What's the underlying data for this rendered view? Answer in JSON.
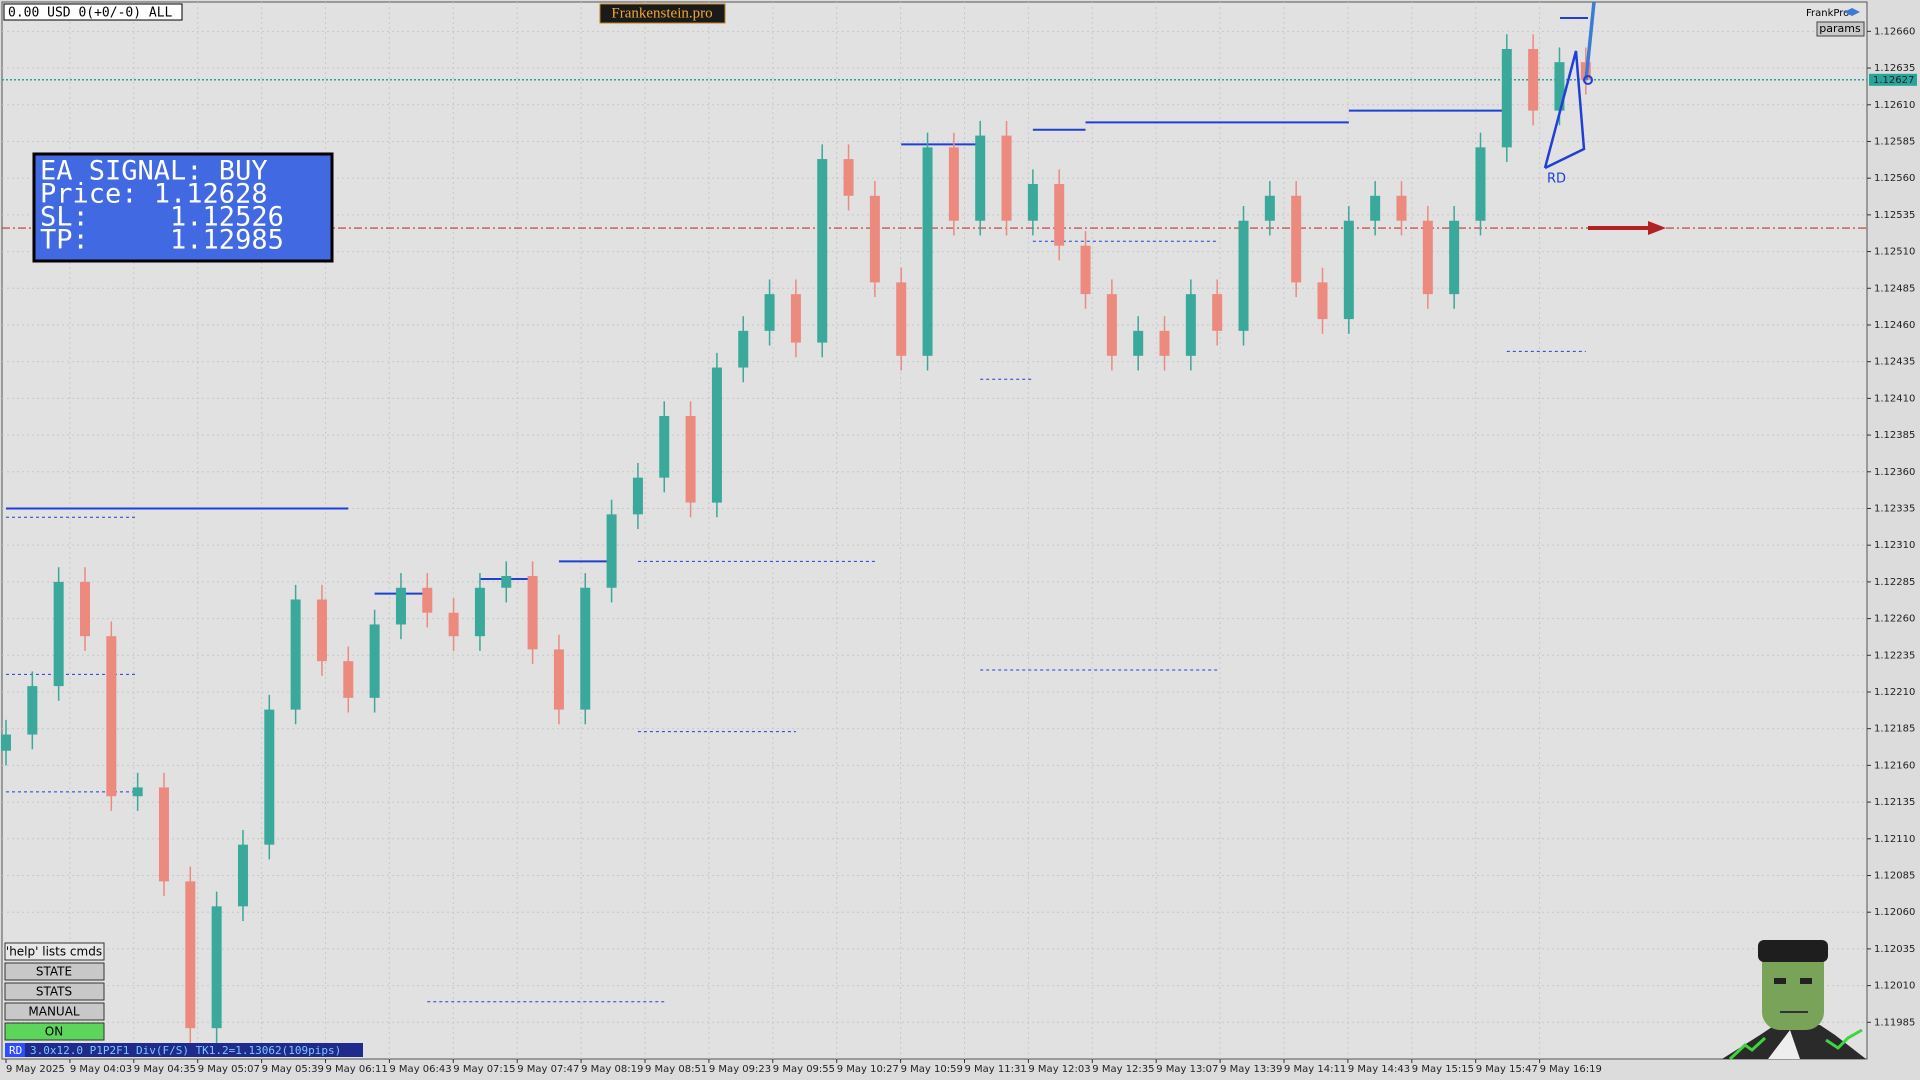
{
  "chart_data": {
    "type": "candlestick",
    "open": [
      1.1217,
      1.12181,
      1.12214,
      1.12285,
      1.12248,
      1.12139,
      1.12145,
      1.12081,
      1.11981,
      1.12064,
      1.12106,
      1.12198,
      1.12273,
      1.12231,
      1.12206,
      1.12256,
      1.12281,
      1.12264,
      1.12248,
      1.12281,
      1.12289,
      1.12239,
      1.12198,
      1.12281,
      1.12331,
      1.12356,
      1.12398,
      1.12339,
      1.12431,
      1.12456,
      1.12481,
      1.12448,
      1.12573,
      1.12548,
      1.12489,
      1.12439,
      1.12581,
      1.12531,
      1.12589,
      1.12531,
      1.12556,
      1.12514,
      1.12481,
      1.12439,
      1.12456,
      1.12439,
      1.12481,
      1.12456,
      1.12531,
      1.12548,
      1.12489,
      1.12464,
      1.12531,
      1.12548,
      1.12531,
      1.12481,
      1.12531,
      1.12581,
      1.12648,
      1.12606,
      1.12639
    ],
    "high": [
      1.12191,
      1.12224,
      1.12295,
      1.12295,
      1.12258,
      1.12155,
      1.12155,
      1.12091,
      1.12074,
      1.12116,
      1.12208,
      1.12283,
      1.12283,
      1.12241,
      1.12266,
      1.12291,
      1.12291,
      1.12274,
      1.12291,
      1.12299,
      1.12299,
      1.12249,
      1.12291,
      1.12341,
      1.12366,
      1.12408,
      1.12408,
      1.12441,
      1.12466,
      1.12491,
      1.12491,
      1.12583,
      1.12583,
      1.12558,
      1.12499,
      1.12591,
      1.12591,
      1.12599,
      1.12599,
      1.12566,
      1.12566,
      1.12524,
      1.12491,
      1.12466,
      1.12466,
      1.12491,
      1.12491,
      1.12541,
      1.12558,
      1.12558,
      1.12499,
      1.12541,
      1.12558,
      1.12558,
      1.12541,
      1.12541,
      1.12591,
      1.12658,
      1.12658,
      1.12649,
      1.12649
    ],
    "low": [
      1.1216,
      1.12171,
      1.12204,
      1.12238,
      1.12129,
      1.12129,
      1.12071,
      1.11971,
      1.11971,
      1.12054,
      1.12096,
      1.12188,
      1.12221,
      1.12196,
      1.12196,
      1.12246,
      1.12254,
      1.12238,
      1.12238,
      1.12271,
      1.12229,
      1.12188,
      1.12188,
      1.12271,
      1.12321,
      1.12346,
      1.12329,
      1.12329,
      1.12421,
      1.12446,
      1.12438,
      1.12438,
      1.12538,
      1.12479,
      1.12429,
      1.12429,
      1.12521,
      1.12521,
      1.12521,
      1.12521,
      1.12504,
      1.12471,
      1.12429,
      1.12429,
      1.12429,
      1.12429,
      1.12446,
      1.12446,
      1.12521,
      1.12479,
      1.12454,
      1.12454,
      1.12521,
      1.12521,
      1.12471,
      1.12471,
      1.12521,
      1.12571,
      1.12596,
      1.12596,
      1.12617
    ],
    "close": [
      1.12181,
      1.12214,
      1.12285,
      1.12248,
      1.12139,
      1.12145,
      1.12081,
      1.11981,
      1.12064,
      1.12106,
      1.12198,
      1.12273,
      1.12231,
      1.12206,
      1.12256,
      1.12281,
      1.12264,
      1.12248,
      1.12281,
      1.12289,
      1.12239,
      1.12198,
      1.12281,
      1.12331,
      1.12356,
      1.12398,
      1.12339,
      1.12431,
      1.12456,
      1.12481,
      1.12448,
      1.12573,
      1.12548,
      1.12489,
      1.12439,
      1.12581,
      1.12531,
      1.12589,
      1.12531,
      1.12556,
      1.12514,
      1.12481,
      1.12439,
      1.12456,
      1.12439,
      1.12481,
      1.12456,
      1.12531,
      1.12548,
      1.12489,
      1.12464,
      1.12531,
      1.12548,
      1.12531,
      1.12481,
      1.12531,
      1.12581,
      1.12648,
      1.12606,
      1.12639,
      1.12627
    ],
    "up_color": "#3aa89a",
    "down_color": "#ec8a80",
    "ylim": [
      1.1196,
      1.1268
    ],
    "yticks": [
      1.11985,
      {
        "value": 1.1201,
        "label": "1.12010"
      },
      1.12035,
      {
        "value": 1.1206,
        "label": "1.12060"
      },
      1.12085,
      {
        "value": 1.1211,
        "label": "1.12110"
      },
      1.12135,
      {
        "value": 1.1216,
        "label": "1.12160"
      },
      1.12185,
      {
        "value": 1.1221,
        "label": "1.12210"
      },
      1.12235,
      {
        "value": 1.1226,
        "label": "1.12260"
      },
      1.12285,
      {
        "value": 1.1231,
        "label": "1.12310"
      },
      1.12335,
      {
        "value": 1.1236,
        "label": "1.12360"
      },
      1.12385,
      {
        "value": 1.1241,
        "label": "1.12410"
      },
      1.12435,
      {
        "value": 1.1246,
        "label": "1.12460"
      },
      1.12485,
      {
        "value": 1.1251,
        "label": "1.12510"
      },
      1.12535,
      {
        "value": 1.1256,
        "label": "1.12560"
      },
      1.12585,
      {
        "value": 1.1261,
        "label": "1.12610"
      },
      1.12635,
      {
        "value": 1.1266,
        "label": "1.12660"
      }
    ],
    "xtick_labels": [
      "9 May 2025",
      "9 May 04:03",
      "9 May 04:35",
      "9 May 05:07",
      "9 May 05:39",
      "9 May 06:11",
      "9 May 06:43",
      "9 May 07:15",
      "9 May 07:47",
      "9 May 08:19",
      "9 May 08:51",
      "9 May 09:23",
      "9 May 09:55",
      "9 May 10:27",
      "9 May 10:59",
      "9 May 11:31",
      "9 May 12:03",
      "9 May 12:35",
      "9 May 13:07",
      "9 May 13:39",
      "9 May 14:11",
      "9 May 14:43",
      "9 May 15:15",
      "9 May 15:47",
      "9 May 16:19"
    ],
    "grid": true,
    "price_line": {
      "value": 1.12627,
      "color": "#26a69a"
    },
    "sl_line": {
      "value": 1.12526,
      "color": "#c0392b"
    },
    "level_color": "#1f3fd6",
    "levels": [
      {
        "value": 1.12335,
        "start": 0,
        "end": 13,
        "dashed": false
      },
      {
        "value": 1.12277,
        "start": 14,
        "end": 16,
        "dashed": false
      },
      {
        "value": 1.12287,
        "start": 18,
        "end": 20,
        "dashed": false
      },
      {
        "value": 1.12299,
        "start": 21,
        "end": 23,
        "dashed": false
      },
      {
        "value": 1.12583,
        "start": 34,
        "end": 37,
        "dashed": false
      },
      {
        "value": 1.12593,
        "start": 39,
        "end": 41,
        "dashed": false
      },
      {
        "value": 1.12598,
        "start": 41,
        "end": 51,
        "dashed": false
      },
      {
        "value": 1.12606,
        "start": 51,
        "end": 57,
        "dashed": false
      },
      {
        "value": 1.12329,
        "start": 0,
        "end": 5,
        "dashed": true
      },
      {
        "value": 1.12222,
        "start": 0,
        "end": 5,
        "dashed": true
      },
      {
        "value": 1.12142,
        "start": 0,
        "end": 5,
        "dashed": true
      },
      {
        "value": 1.12183,
        "start": 24,
        "end": 30,
        "dashed": true
      },
      {
        "value": 1.12299,
        "start": 24,
        "end": 33,
        "dashed": true
      },
      {
        "value": 1.12225,
        "start": 37,
        "end": 46,
        "dashed": true
      },
      {
        "value": 1.12423,
        "start": 37,
        "end": 39,
        "dashed": true
      },
      {
        "value": 1.12517,
        "start": 39,
        "end": 46,
        "dashed": true
      },
      {
        "value": 1.11999,
        "start": 16,
        "end": 25,
        "dashed": true
      },
      {
        "value": 1.12442,
        "start": 57,
        "end": 60,
        "dashed": true
      }
    ]
  },
  "account": {
    "status": "0.00 USD 0(+0/-0) ALL"
  },
  "brand": "Frankenstein.pro",
  "signal": {
    "title": "EA SIGNAL: BUY",
    "lines": [
      "Price: 1.12628",
      "SL:     1.12526",
      "TP:     1.12985"
    ]
  },
  "panel": {
    "name": "FrankPro",
    "params": "params"
  },
  "buttons": [
    "'help' lists cmds",
    "STATE",
    "STATS",
    "MANUAL",
    "ON"
  ],
  "status_bar": {
    "tag": "RD",
    "text": "3.0x12.0 P1P2F1 Div(F/S) TK1.2=1.13062(109pips)"
  },
  "pattern_label": "RD"
}
